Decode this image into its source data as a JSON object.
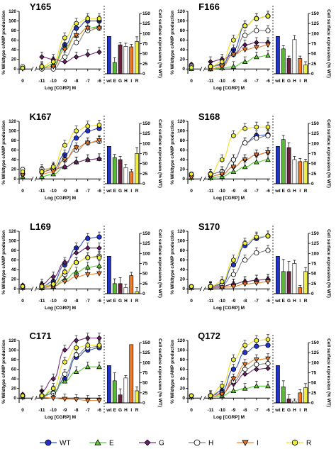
{
  "figure": {
    "curve_x": [
      -11,
      -10,
      -9,
      -8,
      -7,
      -6
    ],
    "x_ticks": [
      "0",
      "-11",
      "-10",
      "-9",
      "-8",
      "-7",
      "-6"
    ],
    "xlabel": "Log [CGRP] M",
    "ylabel_left": "% Wildtype cAMP production",
    "ylabel_right": "Cell surface expression (% WT)",
    "left_ticks": [
      0,
      20,
      40,
      60,
      80,
      100,
      120
    ],
    "right_ticks": [
      0,
      25,
      50,
      75,
      100,
      125,
      150
    ],
    "bar_categories": [
      "wt",
      "E",
      "G",
      "H",
      "I",
      "R"
    ]
  },
  "legend": [
    {
      "key": "WT",
      "label": "WT",
      "marker": "circle",
      "color": "#2233cc"
    },
    {
      "key": "E",
      "label": "E",
      "marker": "triangle-up",
      "color": "#66cc33"
    },
    {
      "key": "G",
      "label": "G",
      "marker": "diamond",
      "color": "#6b1f6b"
    },
    {
      "key": "H",
      "label": "H",
      "marker": "circle",
      "color": "#ffffff"
    },
    {
      "key": "I",
      "label": "I",
      "marker": "triangle-down",
      "color": "#ee7722"
    },
    {
      "key": "R",
      "label": "R",
      "marker": "hexagon",
      "color": "#eeee33"
    }
  ],
  "curve_colors": {
    "WT": "#3355cc",
    "E": "#55cc33",
    "G": "#7a337a",
    "H": "#888888",
    "I": "#ee8833",
    "R": "#f0e020"
  },
  "bar_colors": [
    "#2233cc",
    "#55bb33",
    "#6b1f3b",
    "#ffffff",
    "#ee7722",
    "#eeee44"
  ],
  "chart_data": [
    {
      "type": "line",
      "title": "Y165",
      "x": [
        -11,
        -10,
        -9,
        -8,
        -7,
        -6
      ],
      "ylim": [
        -10,
        120
      ],
      "basal": {
        "WT": 3,
        "E": 2,
        "G": 1,
        "H": 5,
        "I": 0,
        "R": 2
      },
      "series": [
        {
          "name": "WT",
          "values": [
            2,
            5,
            50,
            85,
            100,
            100
          ]
        },
        {
          "name": "E",
          "values": [
            2,
            10,
            45,
            70,
            85,
            88
          ]
        },
        {
          "name": "G",
          "values": [
            25,
            20,
            15,
            25,
            30,
            35
          ]
        },
        {
          "name": "H",
          "values": [
            0,
            0,
            25,
            55,
            80,
            85
          ]
        },
        {
          "name": "I",
          "values": [
            2,
            5,
            40,
            70,
            85,
            85
          ]
        },
        {
          "name": "R",
          "values": [
            5,
            15,
            65,
            95,
            105,
            105
          ]
        }
      ],
      "bars": {
        "type": "bar",
        "ylim": [
          0,
          150
        ],
        "values": [
          93,
          28,
          72,
          68,
          67,
          80
        ],
        "errors": [
          0,
          12,
          6,
          8,
          6,
          12
        ]
      }
    },
    {
      "type": "line",
      "title": "F166",
      "x": [
        -11,
        -10,
        -9,
        -8,
        -7,
        -6
      ],
      "ylim": [
        -10,
        120
      ],
      "basal": {
        "WT": 5,
        "E": 0,
        "G": 10,
        "H": 6,
        "I": 3,
        "R": 3
      },
      "series": [
        {
          "name": "WT",
          "values": [
            5,
            10,
            40,
            90,
            105,
            110
          ]
        },
        {
          "name": "E",
          "values": [
            0,
            2,
            5,
            15,
            25,
            28
          ]
        },
        {
          "name": "G",
          "values": [
            15,
            20,
            30,
            50,
            55,
            55
          ]
        },
        {
          "name": "H",
          "values": [
            5,
            8,
            30,
            70,
            80,
            80
          ]
        },
        {
          "name": "I",
          "values": [
            0,
            5,
            30,
            40,
            45,
            50
          ]
        },
        {
          "name": "R",
          "values": [
            5,
            15,
            60,
            90,
            105,
            110
          ]
        }
      ],
      "bars": {
        "type": "bar",
        "ylim": [
          0,
          150
        ],
        "values": [
          93,
          62,
          38,
          85,
          38,
          22
        ],
        "errors": [
          0,
          8,
          6,
          10,
          6,
          8
        ]
      }
    },
    {
      "type": "line",
      "title": "K167",
      "x": [
        -11,
        -10,
        -9,
        -8,
        -7,
        -6
      ],
      "ylim": [
        -10,
        120
      ],
      "basal": {
        "WT": 10,
        "E": 5,
        "G": 15,
        "H": 20,
        "I": 8,
        "R": 15
      },
      "series": [
        {
          "name": "WT",
          "values": [
            15,
            20,
            50,
            85,
            100,
            105
          ]
        },
        {
          "name": "E",
          "values": [
            5,
            10,
            25,
            35,
            40,
            42
          ]
        },
        {
          "name": "G",
          "values": [
            15,
            20,
            25,
            35,
            40,
            42
          ]
        },
        {
          "name": "H",
          "values": [
            20,
            22,
            40,
            60,
            75,
            78
          ]
        },
        {
          "name": "I",
          "values": [
            10,
            15,
            40,
            65,
            75,
            80
          ]
        },
        {
          "name": "R",
          "values": [
            15,
            25,
            70,
            100,
            110,
            112
          ]
        }
      ],
      "bars": {
        "type": "bar",
        "ylim": [
          0,
          150
        ],
        "values": [
          93,
          65,
          60,
          40,
          30,
          75
        ],
        "errors": [
          0,
          8,
          8,
          8,
          6,
          15
        ]
      }
    },
    {
      "type": "line",
      "title": "S168",
      "x": [
        -11,
        -10,
        -9,
        -8,
        -7,
        -6
      ],
      "ylim": [
        -10,
        120
      ],
      "basal": {
        "WT": 10,
        "E": 2,
        "G": 5,
        "H": 10,
        "I": 3,
        "R": 10
      },
      "series": [
        {
          "name": "WT",
          "values": [
            10,
            15,
            40,
            75,
            90,
            92
          ]
        },
        {
          "name": "E",
          "values": [
            2,
            5,
            15,
            25,
            35,
            40
          ]
        },
        {
          "name": "G",
          "values": [
            5,
            10,
            25,
            40,
            50,
            55
          ]
        },
        {
          "name": "H",
          "values": [
            10,
            15,
            40,
            75,
            85,
            90
          ]
        },
        {
          "name": "I",
          "values": [
            5,
            10,
            25,
            40,
            50,
            55
          ]
        },
        {
          "name": "R",
          "values": [
            10,
            40,
            90,
            105,
            108,
            108
          ]
        }
      ],
      "bars": {
        "type": "bar",
        "ylim": [
          0,
          150
        ],
        "values": [
          93,
          110,
          90,
          60,
          55,
          55
        ],
        "errors": [
          0,
          10,
          12,
          8,
          8,
          6
        ]
      }
    },
    {
      "type": "line",
      "title": "L169",
      "x": [
        -11,
        -10,
        -9,
        -8,
        -7,
        -6
      ],
      "ylim": [
        -10,
        120
      ],
      "basal": {
        "WT": 5,
        "E": 2,
        "G": 8,
        "H": 3,
        "I": 2,
        "R": 5
      },
      "series": [
        {
          "name": "WT",
          "values": [
            5,
            15,
            50,
            85,
            105,
            108
          ]
        },
        {
          "name": "E",
          "values": [
            2,
            5,
            20,
            35,
            45,
            48
          ]
        },
        {
          "name": "G",
          "values": [
            10,
            25,
            55,
            75,
            85,
            85
          ]
        },
        {
          "name": "H",
          "values": [
            3,
            8,
            30,
            55,
            65,
            68
          ]
        },
        {
          "name": "I",
          "values": [
            2,
            5,
            15,
            25,
            30,
            32
          ]
        },
        {
          "name": "R",
          "values": [
            5,
            10,
            35,
            55,
            65,
            65
          ]
        }
      ],
      "bars": {
        "type": "bar",
        "ylim": [
          0,
          150
        ],
        "values": [
          93,
          25,
          25,
          15,
          45,
          5
        ],
        "errors": [
          0,
          12,
          15,
          8,
          8,
          10
        ]
      }
    },
    {
      "type": "line",
      "title": "S170",
      "x": [
        -11,
        -10,
        -9,
        -8,
        -7,
        -6
      ],
      "ylim": [
        -10,
        120
      ],
      "basal": {
        "WT": 5,
        "E": 2,
        "G": 3,
        "H": 5,
        "I": 2,
        "R": 5
      },
      "series": [
        {
          "name": "WT",
          "values": [
            5,
            10,
            50,
            90,
            105,
            110
          ]
        },
        {
          "name": "E",
          "values": [
            2,
            5,
            10,
            15,
            18,
            20
          ]
        },
        {
          "name": "G",
          "values": [
            3,
            5,
            10,
            15,
            18,
            20
          ]
        },
        {
          "name": "H",
          "values": [
            5,
            8,
            30,
            60,
            75,
            80
          ]
        },
        {
          "name": "I",
          "values": [
            2,
            3,
            5,
            10,
            12,
            15
          ]
        },
        {
          "name": "R",
          "values": [
            5,
            15,
            60,
            95,
            108,
            110
          ]
        }
      ],
      "bars": {
        "type": "bar",
        "ylim": [
          0,
          150
        ],
        "values": [
          93,
          55,
          55,
          75,
          15,
          55
        ],
        "errors": [
          0,
          30,
          25,
          8,
          5,
          10
        ]
      }
    },
    {
      "type": "line",
      "title": "C171",
      "x": [
        -11,
        -10,
        -9,
        -8,
        -7,
        -6
      ],
      "ylim": [
        -10,
        120
      ],
      "basal": {
        "WT": 5,
        "E": 2,
        "G": 8,
        "H": 3,
        "I": 2,
        "R": 5
      },
      "series": [
        {
          "name": "WT",
          "values": [
            5,
            10,
            40,
            85,
            100,
            105
          ]
        },
        {
          "name": "E",
          "values": [
            5,
            15,
            35,
            55,
            65,
            65
          ]
        },
        {
          "name": "G",
          "values": [
            15,
            40,
            100,
            120,
            125,
            125
          ]
        },
        {
          "name": "H",
          "values": [
            3,
            10,
            50,
            90,
            105,
            108
          ]
        },
        {
          "name": "I",
          "values": [
            2,
            0,
            -2,
            -3,
            -5,
            -5
          ]
        },
        {
          "name": "R",
          "values": [
            5,
            20,
            75,
            105,
            110,
            110
          ]
        }
      ],
      "bars": {
        "type": "bar",
        "ylim": [
          0,
          150
        ],
        "values": [
          93,
          55,
          20,
          62,
          145,
          30
        ],
        "errors": [
          0,
          20,
          15,
          6,
          0,
          10
        ]
      }
    },
    {
      "type": "line",
      "title": "Q172",
      "x": [
        -11,
        -10,
        -9,
        -8,
        -7,
        -6
      ],
      "ylim": [
        -10,
        120
      ],
      "basal": {
        "WT": 5,
        "E": 2,
        "G": 5,
        "H": 5,
        "I": 2,
        "R": 5
      },
      "series": [
        {
          "name": "WT",
          "values": [
            5,
            15,
            60,
            95,
            108,
            110
          ]
        },
        {
          "name": "E",
          "values": [
            2,
            5,
            15,
            20,
            25,
            25
          ]
        },
        {
          "name": "G",
          "values": [
            5,
            10,
            30,
            50,
            60,
            62
          ]
        },
        {
          "name": "H",
          "values": [
            5,
            10,
            35,
            60,
            70,
            72
          ]
        },
        {
          "name": "I",
          "values": [
            2,
            8,
            40,
            70,
            80,
            82
          ]
        },
        {
          "name": "R",
          "values": [
            5,
            25,
            80,
            110,
            120,
            122
          ]
        }
      ],
      "bars": {
        "type": "bar",
        "ylim": [
          0,
          150
        ],
        "values": [
          93,
          40,
          10,
          5,
          25,
          38
        ],
        "errors": [
          0,
          15,
          10,
          5,
          8,
          10
        ]
      }
    }
  ]
}
